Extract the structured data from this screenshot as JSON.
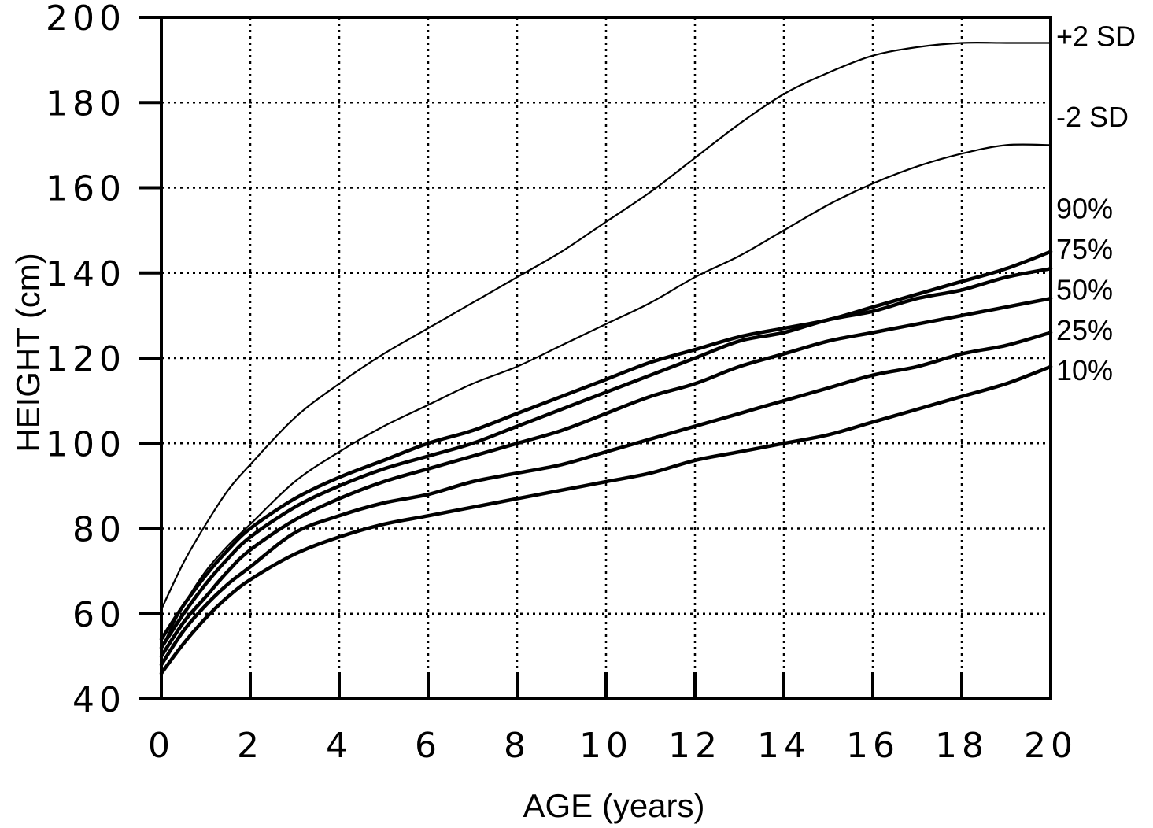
{
  "chart_data": {
    "type": "line",
    "title": "",
    "xlabel": "AGE (years)",
    "ylabel": "HEIGHT (cm)",
    "xlim": [
      0,
      20
    ],
    "ylim": [
      40,
      200
    ],
    "xticks": [
      0,
      2,
      4,
      6,
      8,
      10,
      12,
      14,
      16,
      18,
      20
    ],
    "yticks": [
      40,
      60,
      80,
      100,
      120,
      140,
      160,
      180,
      200
    ],
    "grid": true,
    "legend": "labels at right end of each curve",
    "series": [
      {
        "name": "+2 SD",
        "weight": "thin",
        "x": [
          0,
          0.5,
          1,
          1.5,
          2,
          3,
          4,
          5,
          6,
          7,
          8,
          9,
          10,
          11,
          12,
          13,
          14,
          15,
          16,
          17,
          18,
          19,
          20
        ],
        "y": [
          61,
          72,
          81,
          89,
          95,
          106,
          114,
          121,
          127,
          133,
          139,
          145,
          152,
          159,
          167,
          175,
          182,
          187,
          191,
          193,
          194,
          194,
          194
        ]
      },
      {
        "name": "-2 SD",
        "weight": "thin",
        "x": [
          0,
          0.5,
          1,
          1.5,
          2,
          3,
          4,
          5,
          6,
          7,
          8,
          9,
          10,
          11,
          12,
          13,
          14,
          15,
          16,
          17,
          18,
          19,
          20
        ],
        "y": [
          52,
          62,
          70,
          76,
          81,
          91,
          98,
          104,
          109,
          114,
          118,
          123,
          128,
          133,
          139,
          144,
          150,
          156,
          161,
          165,
          168,
          170,
          170
        ]
      },
      {
        "name": "90%",
        "weight": "thick",
        "x": [
          0,
          0.5,
          1,
          1.5,
          2,
          3,
          4,
          5,
          6,
          7,
          8,
          9,
          10,
          11,
          12,
          13,
          14,
          15,
          16,
          17,
          18,
          19,
          20
        ],
        "y": [
          54,
          62,
          69,
          75,
          80,
          87,
          92,
          96,
          100,
          103,
          107,
          111,
          115,
          119,
          122,
          125,
          127,
          129,
          132,
          135,
          138,
          141,
          145
        ]
      },
      {
        "name": "75%",
        "weight": "thick",
        "x": [
          0,
          0.5,
          1,
          1.5,
          2,
          3,
          4,
          5,
          6,
          7,
          8,
          9,
          10,
          11,
          12,
          13,
          14,
          15,
          16,
          17,
          18,
          19,
          20
        ],
        "y": [
          52,
          60,
          67,
          73,
          78,
          85,
          90,
          94,
          97,
          100,
          104,
          108,
          112,
          116,
          120,
          124,
          126,
          129,
          131,
          134,
          136,
          139,
          141
        ]
      },
      {
        "name": "50%",
        "weight": "thick",
        "x": [
          0,
          0.5,
          1,
          1.5,
          2,
          3,
          4,
          5,
          6,
          7,
          8,
          9,
          10,
          11,
          12,
          13,
          14,
          15,
          16,
          17,
          18,
          19,
          20
        ],
        "y": [
          50,
          58,
          64,
          70,
          75,
          82,
          87,
          91,
          94,
          97,
          100,
          103,
          107,
          111,
          114,
          118,
          121,
          124,
          126,
          128,
          130,
          132,
          134
        ]
      },
      {
        "name": "25%",
        "weight": "thick",
        "x": [
          0,
          0.5,
          1,
          1.5,
          2,
          3,
          4,
          5,
          6,
          7,
          8,
          9,
          10,
          11,
          12,
          13,
          14,
          15,
          16,
          17,
          18,
          19,
          20
        ],
        "y": [
          48,
          56,
          62,
          67,
          71,
          79,
          83,
          86,
          88,
          91,
          93,
          95,
          98,
          101,
          104,
          107,
          110,
          113,
          116,
          118,
          121,
          123,
          126
        ]
      },
      {
        "name": "10%",
        "weight": "thick",
        "x": [
          0,
          0.5,
          1,
          1.5,
          2,
          3,
          4,
          5,
          6,
          7,
          8,
          9,
          10,
          11,
          12,
          13,
          14,
          15,
          16,
          17,
          18,
          19,
          20
        ],
        "y": [
          46,
          53,
          59,
          64,
          68,
          74,
          78,
          81,
          83,
          85,
          87,
          89,
          91,
          93,
          96,
          98,
          100,
          102,
          105,
          108,
          111,
          114,
          118
        ]
      }
    ]
  }
}
